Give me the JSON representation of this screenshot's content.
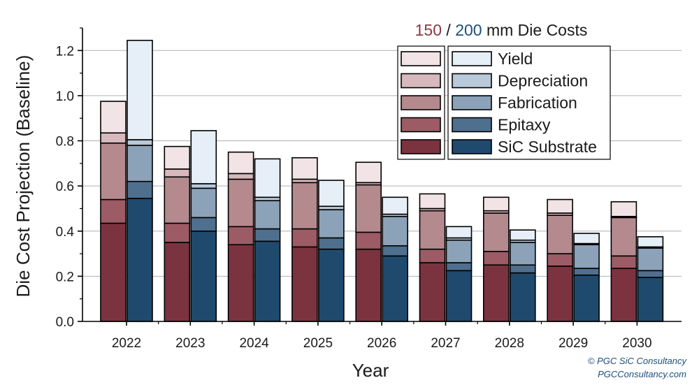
{
  "chart_data": {
    "type": "bar",
    "stacked": true,
    "grouped": true,
    "title_parts": {
      "num150": "150",
      "sep": " / ",
      "num200": "200",
      "rest": " mm Die Costs"
    },
    "xlabel": "Year",
    "ylabel": "Die Cost Projection (Baseline)",
    "categories": [
      "2022",
      "2023",
      "2024",
      "2025",
      "2026",
      "2027",
      "2028",
      "2029",
      "2030"
    ],
    "ylim": [
      0,
      1.3
    ],
    "yticks": [
      "0.0",
      "0.2",
      "0.4",
      "0.6",
      "0.8",
      "1.0",
      "1.2"
    ],
    "ytick_values": [
      0,
      0.2,
      0.4,
      0.6,
      0.8,
      1.0,
      1.2
    ],
    "grid": true,
    "legend_position": "top-right",
    "legend_labels": [
      "Yield",
      "Depreciation",
      "Fabrication",
      "Epitaxy",
      "SiC Substrate"
    ],
    "groups": [
      {
        "name": "150 mm",
        "series": [
          {
            "name": "SiC Substrate",
            "color": "#7b3340",
            "values": [
              0.435,
              0.35,
              0.34,
              0.33,
              0.32,
              0.26,
              0.25,
              0.245,
              0.235
            ]
          },
          {
            "name": "Epitaxy",
            "color": "#9c5b65",
            "values": [
              0.105,
              0.085,
              0.08,
              0.08,
              0.075,
              0.06,
              0.06,
              0.055,
              0.055
            ]
          },
          {
            "name": "Fabrication",
            "color": "#b48a8f",
            "values": [
              0.25,
              0.205,
              0.21,
              0.205,
              0.21,
              0.17,
              0.17,
              0.17,
              0.17
            ]
          },
          {
            "name": "Depreciation",
            "color": "#d6b8bd",
            "values": [
              0.045,
              0.035,
              0.025,
              0.015,
              0.01,
              0.01,
              0.01,
              0.01,
              0.005
            ]
          },
          {
            "name": "Yield",
            "color": "#f2e3e6",
            "values": [
              0.14,
              0.1,
              0.095,
              0.095,
              0.09,
              0.065,
              0.06,
              0.06,
              0.065
            ]
          }
        ]
      },
      {
        "name": "200 mm",
        "series": [
          {
            "name": "SiC Substrate",
            "color": "#1f4a6e",
            "values": [
              0.545,
              0.4,
              0.355,
              0.32,
              0.29,
              0.225,
              0.215,
              0.205,
              0.195
            ]
          },
          {
            "name": "Epitaxy",
            "color": "#4f6f8f",
            "values": [
              0.075,
              0.06,
              0.055,
              0.05,
              0.045,
              0.035,
              0.035,
              0.03,
              0.03
            ]
          },
          {
            "name": "Fabrication",
            "color": "#8ba2b8",
            "values": [
              0.16,
              0.13,
              0.125,
              0.125,
              0.13,
              0.1,
              0.1,
              0.105,
              0.1
            ]
          },
          {
            "name": "Depreciation",
            "color": "#b8c9d9",
            "values": [
              0.025,
              0.02,
              0.015,
              0.015,
              0.01,
              0.01,
              0.01,
              0.005,
              0.005
            ]
          },
          {
            "name": "Yield",
            "color": "#e6eff7",
            "values": [
              0.44,
              0.235,
              0.17,
              0.115,
              0.075,
              0.05,
              0.045,
              0.045,
              0.045
            ]
          }
        ]
      }
    ]
  },
  "colors": {
    "title_150": "#8b3a42",
    "title_200": "#1f4e79",
    "grid": "#b0b0b0",
    "axis": "#000000",
    "copyright": "#1f4e79"
  },
  "footer": {
    "copyright": "© PGC SiC Consultancy",
    "website": "PGCConsultancy.com"
  }
}
